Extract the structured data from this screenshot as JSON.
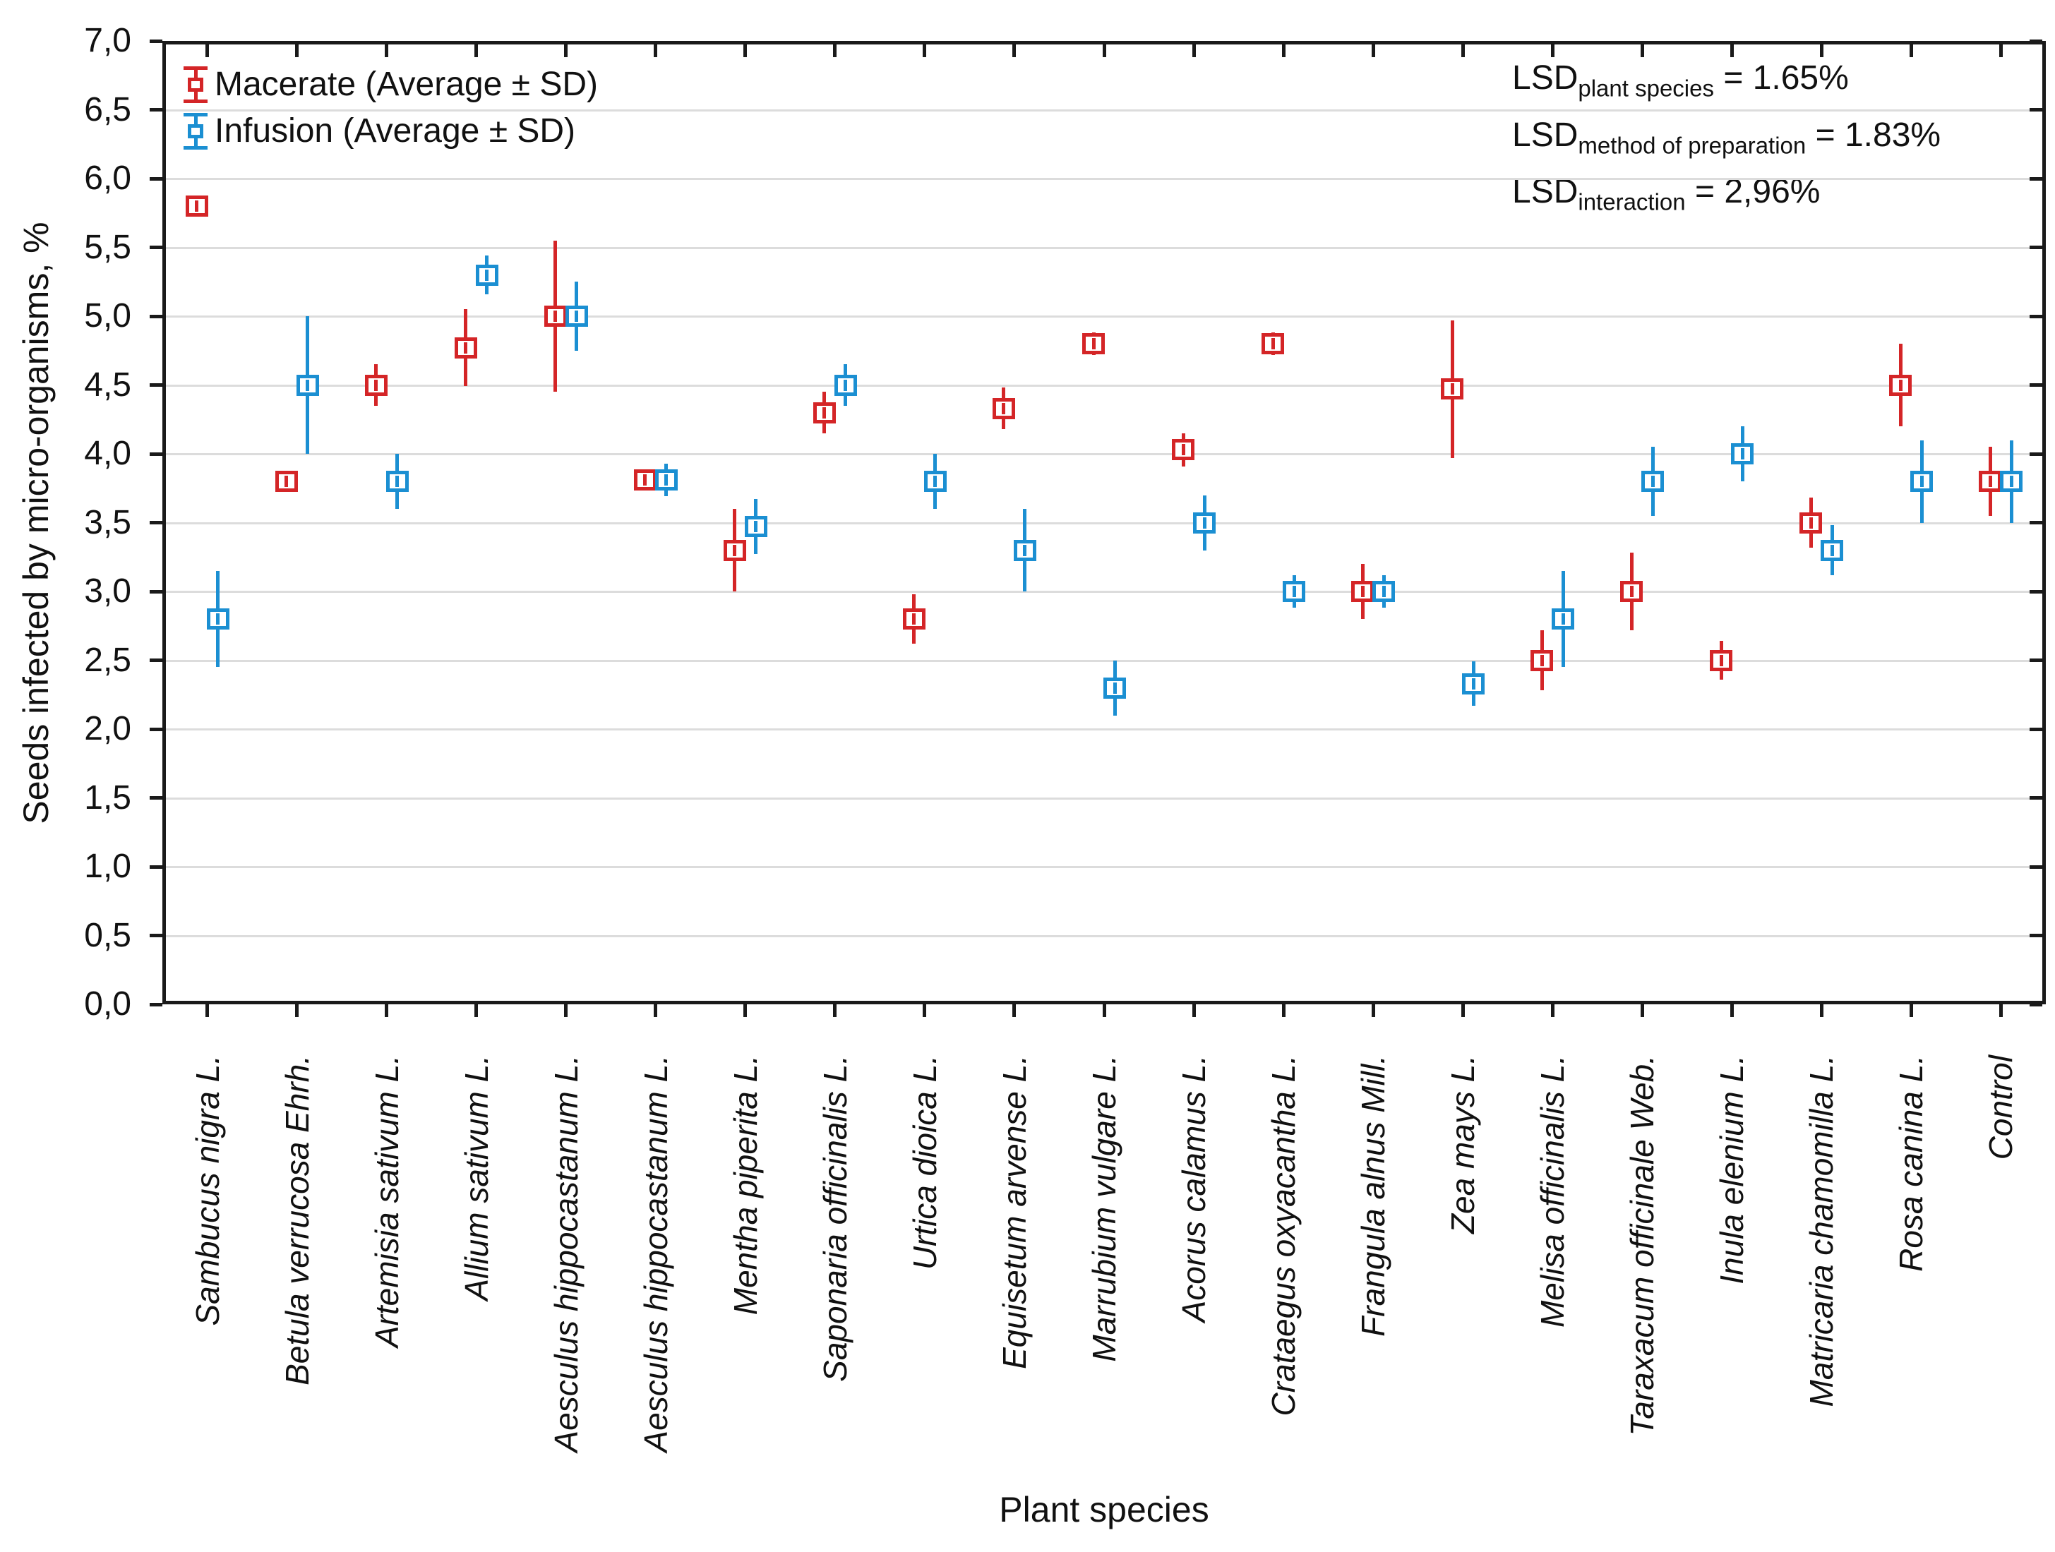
{
  "chart_data": {
    "type": "scatter",
    "title": "",
    "xlabel": "Plant species",
    "ylabel": "Seeds infected by micro-organisms, %",
    "ylim": [
      0.0,
      7.0
    ],
    "ytick_step": 0.5,
    "decimal_separator": ",",
    "grid": "horizontal",
    "legend_position": "top-left-inside",
    "categories": [
      "Sambucus nigra L.",
      "Betula verrucosa Ehrh.",
      "Artemisia sativum L.",
      "Allium sativum L.",
      "Aesculus hippocastanum L.",
      "Aesculus hippocastanum L.",
      "Mentha piperita L.",
      "Saponaria officinalis L.",
      "Urtica dioica L.",
      "Equisetum arvense L.",
      "Marrubium vulgare L.",
      "Acorus calamus L.",
      "Crataegus oxyacantha L.",
      "Frangula alnus Mill.",
      "Zea mays L.",
      "Melisa officinalis L.",
      "Taraxacum officinale Web.",
      "Inula elenium L.",
      "Matricaria chamomilla L.",
      "Rosa canina L.",
      "Control"
    ],
    "series": [
      {
        "name": "Macerate (Average ± SD)",
        "color": "#d42527",
        "means": [
          5.8,
          3.8,
          4.5,
          4.77,
          5.0,
          3.81,
          3.3,
          4.3,
          2.8,
          4.33,
          4.8,
          4.03,
          4.8,
          3.0,
          4.47,
          2.5,
          3.0,
          2.5,
          3.5,
          4.5,
          3.8
        ],
        "sd": [
          0.04,
          0.05,
          0.15,
          0.28,
          0.55,
          0.04,
          0.3,
          0.15,
          0.18,
          0.15,
          0.08,
          0.12,
          0.08,
          0.2,
          0.5,
          0.22,
          0.28,
          0.14,
          0.18,
          0.3,
          0.25
        ]
      },
      {
        "name": "Infusion (Average ± SD)",
        "color": "#1b8fd2",
        "means": [
          2.8,
          4.5,
          3.8,
          5.3,
          5.0,
          3.81,
          3.47,
          4.5,
          3.8,
          3.3,
          2.3,
          3.5,
          3.0,
          3.0,
          2.33,
          2.8,
          3.8,
          4.0,
          3.3,
          3.8,
          3.8
        ],
        "sd": [
          0.35,
          0.5,
          0.2,
          0.14,
          0.25,
          0.12,
          0.2,
          0.15,
          0.2,
          0.3,
          0.2,
          0.2,
          0.12,
          0.12,
          0.16,
          0.35,
          0.25,
          0.2,
          0.18,
          0.3,
          0.3
        ]
      }
    ],
    "annotations": [
      {
        "prefix": "LSD",
        "sub": "plant species",
        "value": "= 1.65%"
      },
      {
        "prefix": "LSD",
        "sub": "method of preparation",
        "value": "= 1.83%"
      },
      {
        "prefix": "LSD",
        "sub": "interaction",
        "value": "= 2,96%"
      }
    ]
  },
  "axis_colors": {
    "border": "#1a1a1a",
    "gridline": "#dcdcdc",
    "text": "#111111"
  }
}
